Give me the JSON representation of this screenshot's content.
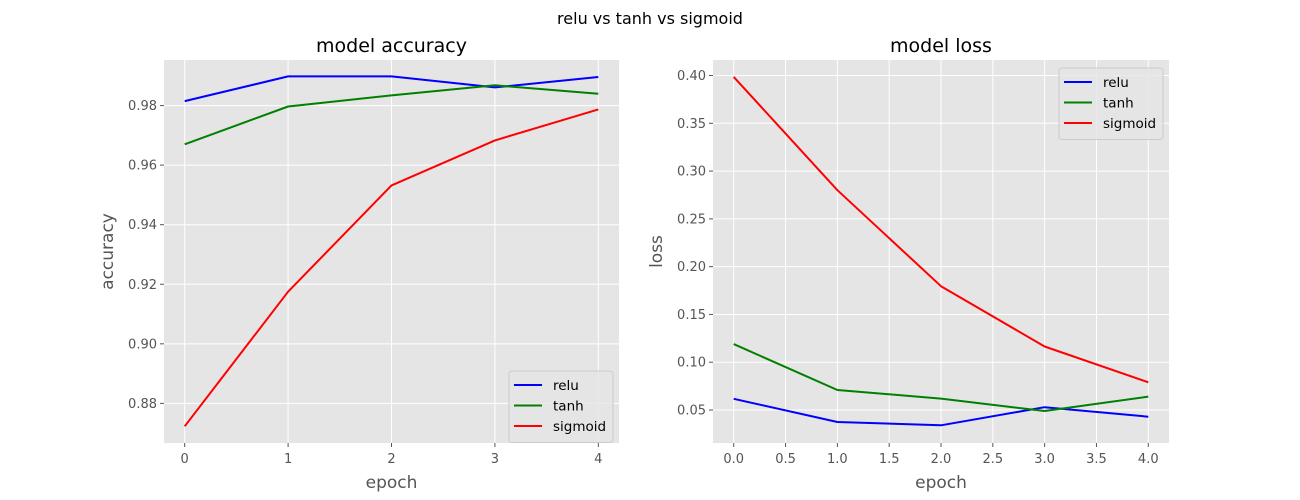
{
  "suptitle": "relu vs tanh vs sigmoid",
  "colors": {
    "relu": "#0000ff",
    "tanh": "#008000",
    "sigmoid": "#ff0000",
    "plot_bg": "#e5e5e5"
  },
  "chart_data": [
    {
      "type": "line",
      "title": "model accuracy",
      "xlabel": "epoch",
      "ylabel": "accuracy",
      "x": [
        0,
        1,
        2,
        3,
        4
      ],
      "xticks": [
        0,
        1,
        2,
        3,
        4
      ],
      "xtick_labels": [
        "0",
        "1",
        "2",
        "3",
        "4"
      ],
      "yticks": [
        0.88,
        0.9,
        0.92,
        0.94,
        0.96,
        0.98
      ],
      "ytick_labels": [
        "0.88",
        "0.90",
        "0.92",
        "0.94",
        "0.96",
        "0.98"
      ],
      "xlim": [
        -0.2,
        4.2
      ],
      "ylim": [
        0.8667,
        0.9953
      ],
      "grid": true,
      "legend_position": "lower-right",
      "series": [
        {
          "name": "relu",
          "color": "#0000ff",
          "values": [
            0.9815,
            0.9898,
            0.9898,
            0.9861,
            0.9896
          ]
        },
        {
          "name": "tanh",
          "color": "#008000",
          "values": [
            0.967,
            0.9797,
            0.9834,
            0.9868,
            0.984
          ]
        },
        {
          "name": "sigmoid",
          "color": "#ff0000",
          "values": [
            0.8723,
            0.9175,
            0.9532,
            0.9683,
            0.9787
          ]
        }
      ]
    },
    {
      "type": "line",
      "title": "model loss",
      "xlabel": "epoch",
      "ylabel": "loss",
      "x": [
        0,
        1,
        2,
        3,
        4
      ],
      "xticks": [
        0,
        0.5,
        1,
        1.5,
        2,
        2.5,
        3,
        3.5,
        4
      ],
      "xtick_labels": [
        "0.0",
        "0.5",
        "1.0",
        "1.5",
        "2.0",
        "2.5",
        "3.0",
        "3.5",
        "4.0"
      ],
      "yticks": [
        0.05,
        0.1,
        0.15,
        0.2,
        0.25,
        0.3,
        0.35,
        0.4
      ],
      "ytick_labels": [
        "0.05",
        "0.10",
        "0.15",
        "0.20",
        "0.25",
        "0.30",
        "0.35",
        "0.40"
      ],
      "xlim": [
        -0.2,
        4.2
      ],
      "ylim": [
        0.0155,
        0.4162
      ],
      "grid": true,
      "legend_position": "top-right",
      "series": [
        {
          "name": "relu",
          "color": "#0000ff",
          "values": [
            0.0617,
            0.0375,
            0.034,
            0.053,
            0.043
          ]
        },
        {
          "name": "tanh",
          "color": "#008000",
          "values": [
            0.119,
            0.071,
            0.062,
            0.049,
            0.064
          ]
        },
        {
          "name": "sigmoid",
          "color": "#ff0000",
          "values": [
            0.3985,
            0.28,
            0.1795,
            0.1165,
            0.079
          ]
        }
      ]
    }
  ]
}
